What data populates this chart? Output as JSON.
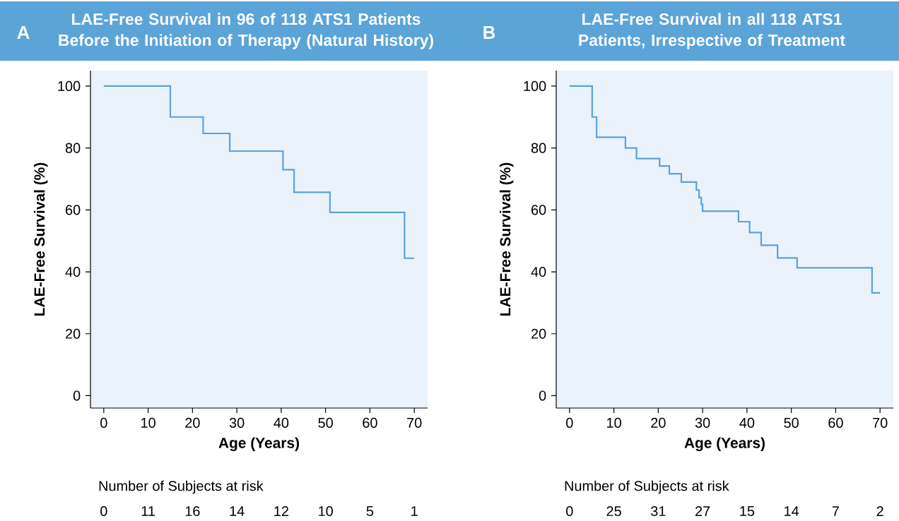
{
  "chart_data": [
    {
      "type": "step",
      "title": "LAE-Free Survival in 96 of 118 ATS1 Patients Before the Initiation of Therapy (Natural History)",
      "xlabel": "Age (Years)",
      "ylabel": "LAE-Free Survival (%)",
      "color": "#5ba3d9",
      "x": [
        0,
        15,
        22.4,
        28.4,
        40.4,
        42.9,
        51,
        67.8,
        70
      ],
      "values": [
        100,
        90,
        84.7,
        79,
        73,
        65.7,
        59.2,
        44.4,
        44.4
      ],
      "xlim": [
        -3,
        73
      ],
      "ylim": [
        -4,
        105
      ],
      "xticks": [
        0,
        10,
        20,
        30,
        40,
        50,
        60,
        70
      ],
      "yticks": [
        0,
        20,
        40,
        60,
        80,
        100
      ],
      "annotations": [
        "A",
        "Number of Subjects at risk",
        "0",
        "11",
        "16",
        "14",
        "12",
        "10",
        "5",
        "1"
      ]
    },
    {
      "type": "step",
      "title": "LAE-Free Survival in all 118 ATS1 Patients, Irrespective of Treatment",
      "xlabel": "Age (Years)",
      "ylabel": "LAE-Free Survival (%)",
      "color": "#5ba3d9",
      "x": [
        0,
        5.1,
        6.1,
        12.6,
        15.1,
        20.3,
        22.5,
        25.2,
        28.6,
        29.2,
        29.7,
        30,
        38.1,
        40.6,
        43.2,
        46.9,
        51.3,
        68.2,
        70
      ],
      "values": [
        100,
        90,
        83.5,
        80,
        76.6,
        74.2,
        71.7,
        69,
        66.4,
        64,
        61.8,
        59.6,
        56.2,
        52.7,
        48.6,
        44.5,
        41.3,
        33.2,
        33.2
      ],
      "xlim": [
        -3,
        73
      ],
      "ylim": [
        -4,
        105
      ],
      "xticks": [
        0,
        10,
        20,
        30,
        40,
        50,
        60,
        70
      ],
      "yticks": [
        0,
        20,
        40,
        60,
        80,
        100
      ],
      "annotations": [
        "B",
        "Number of Subjects at risk",
        "0",
        "25",
        "31",
        "27",
        "15",
        "14",
        "7",
        "2"
      ]
    }
  ]
}
